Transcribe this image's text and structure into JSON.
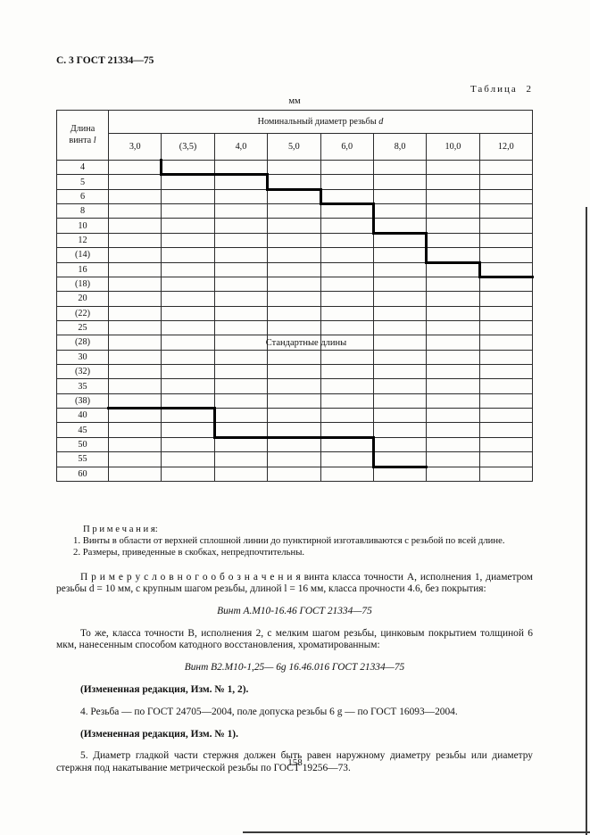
{
  "page": {
    "header": "С. 3 ГОСТ 21334—75",
    "page_number": "158"
  },
  "colors": {
    "ink": "#121212",
    "paper": "#fdfdfb",
    "line": "#000000"
  },
  "table": {
    "caption": "Таблица 2",
    "unit": "мм",
    "length_col_line1": "Длина",
    "length_col_line2_prefix": "винта ",
    "length_col_line2_var": "l",
    "diameter_header_prefix": "Номинальный диаметр резьбы ",
    "diameter_header_var": "d",
    "diameters": [
      "3,0",
      "(3,5)",
      "4,0",
      "5,0",
      "6,0",
      "8,0",
      "10,0",
      "12,0"
    ],
    "lengths": [
      "4",
      "5",
      "6",
      "8",
      "10",
      "12",
      "(14)",
      "16",
      "(18)",
      "20",
      "(22)",
      "25",
      "(28)",
      "30",
      "(32)",
      "35",
      "(38)",
      "40",
      "45",
      "50",
      "55",
      "60"
    ],
    "standard_label": "Стандартные длины",
    "boundaries": {
      "upper": [
        {
          "dir": "v",
          "col": 1,
          "r1": -1,
          "r2": 0
        },
        {
          "dir": "h",
          "row": 0,
          "c1": 1,
          "c2": 3
        },
        {
          "dir": "v",
          "col": 3,
          "r1": 0,
          "r2": 1
        },
        {
          "dir": "h",
          "row": 1,
          "c1": 3,
          "c2": 4
        },
        {
          "dir": "v",
          "col": 4,
          "r1": 1,
          "r2": 2
        },
        {
          "dir": "h",
          "row": 2,
          "c1": 4,
          "c2": 5
        },
        {
          "dir": "v",
          "col": 5,
          "r1": 2,
          "r2": 4
        },
        {
          "dir": "h",
          "row": 4,
          "c1": 5,
          "c2": 6
        },
        {
          "dir": "v",
          "col": 6,
          "r1": 4,
          "r2": 6
        },
        {
          "dir": "h",
          "row": 6,
          "c1": 6,
          "c2": 7
        },
        {
          "dir": "v",
          "col": 7,
          "r1": 6,
          "r2": 7
        },
        {
          "dir": "h",
          "row": 7,
          "c1": 7,
          "c2": 8
        }
      ],
      "lower": [
        {
          "dir": "h",
          "row": 16,
          "c1": 0,
          "c2": 2
        },
        {
          "dir": "v",
          "col": 2,
          "r1": 16,
          "r2": 18
        },
        {
          "dir": "h",
          "row": 18,
          "c1": 2,
          "c2": 5
        },
        {
          "dir": "v",
          "col": 5,
          "r1": 18,
          "r2": 20
        },
        {
          "dir": "h",
          "row": 20,
          "c1": 5,
          "c2": 6
        }
      ]
    }
  },
  "notes": {
    "title": "П р и м е ч а н и я:",
    "items": [
      "1. Винты в области от верхней сплошной линии до пунктирной изготавливаются с резьбой по всей длине.",
      "2. Размеры, приведенные в скобках, непредпочтительны."
    ]
  },
  "paragraphs": {
    "example_intro": "П р и м е р  у с л о в н о г о  о б о з н а ч е н и я  винта класса точности А, исполнения 1, диаметром резьбы d = 10 мм, с крупным шагом резьбы, длиной l = 16 мм, класса прочности 4.6, без покрытия:",
    "designation1": "Винт А.М10-16.46 ГОСТ 21334—75",
    "same_intro": "То же, класса точности В, исполнения 2, с мелким шагом резьбы, цинковым покрытием толщиной 6 мкм, нанесенным способом катодного восстановления, хроматированным:",
    "designation2": "Винт В2.М10-1,25— 6g 16.46.016 ГОСТ 21334—75",
    "amended1": "(Измененная редакция, Изм. № 1, 2).",
    "item4": "4. Резьба — по ГОСТ 24705—2004, поле допуска резьбы 6 g — по ГОСТ 16093—2004.",
    "amended2": "(Измененная редакция, Изм. № 1).",
    "item5": "5. Диаметр гладкой части стержня должен быть равен наружному диаметру резьбы или диаметру стержня под накатывание метрической резьбы по ГОСТ 19256—73."
  }
}
